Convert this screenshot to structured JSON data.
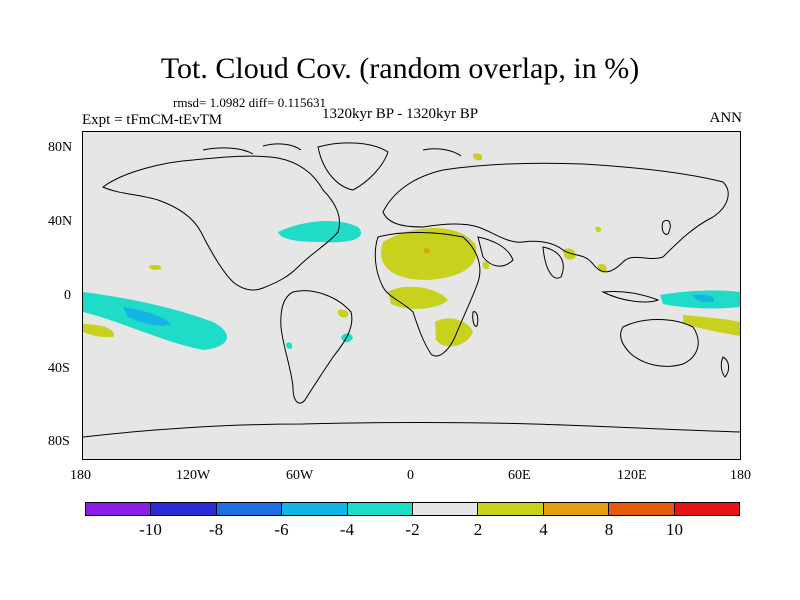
{
  "header": {
    "title": "Tot. Cloud Cov. (random overlap, in %)",
    "stats": "rmsd= 1.0982 diff= 0.115631",
    "experiment": "Expt = tFmCM-tEvTM",
    "period": "1320kyr BP - 1320kyr BP",
    "season": "ANN"
  },
  "map": {
    "lat_labels": [
      "80N",
      "40N",
      "0",
      "40S",
      "80S"
    ],
    "lon_labels": [
      "180",
      "120W",
      "60W",
      "0",
      "60E",
      "120E",
      "180"
    ],
    "background_color": "#e6e6e6"
  },
  "colorbar": {
    "colors": [
      "#8a1de6",
      "#2a2ad6",
      "#1e6ee6",
      "#14b4e6",
      "#1edcc8",
      "#e6e6e6",
      "#c8d21e",
      "#e6a014",
      "#e65a0a",
      "#e61414"
    ],
    "labels": [
      "-10",
      "-8",
      "-6",
      "-4",
      "-2",
      "2",
      "4",
      "8",
      "10"
    ]
  }
}
